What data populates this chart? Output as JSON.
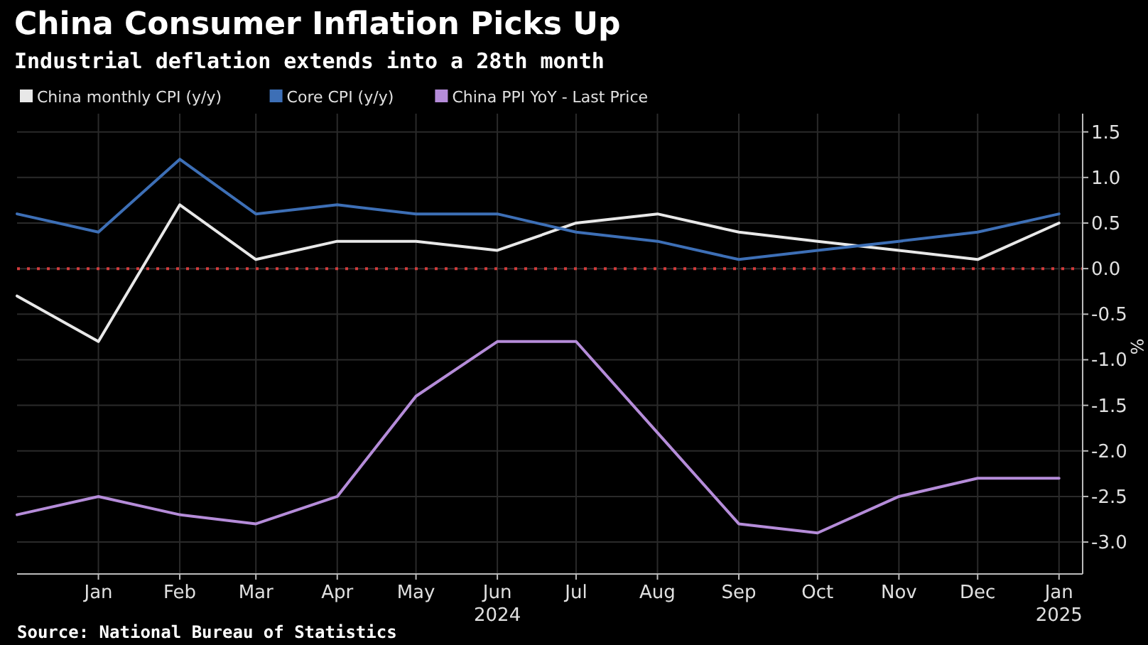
{
  "chart_data": {
    "type": "line",
    "title": "China Consumer Inflation Picks Up",
    "subtitle": "Industrial deflation extends into a 28th month",
    "ylabel": "%",
    "x": [
      "2023-12",
      "2024-01",
      "2024-02",
      "2024-03",
      "2024-04",
      "2024-05",
      "2024-06",
      "2024-07",
      "2024-08",
      "2024-09",
      "2024-10",
      "2024-11",
      "2024-12",
      "2025-01"
    ],
    "series": [
      {
        "name": "China monthly CPI (y/y)",
        "color": "#e8e8e8",
        "values": [
          -0.3,
          -0.8,
          0.7,
          0.1,
          0.3,
          0.3,
          0.2,
          0.5,
          0.6,
          0.4,
          0.3,
          0.2,
          0.1,
          0.5
        ]
      },
      {
        "name": "Core CPI (y/y)",
        "color": "#3d6fb6",
        "values": [
          0.6,
          0.4,
          1.2,
          0.6,
          0.7,
          0.6,
          0.6,
          0.4,
          0.3,
          0.1,
          0.2,
          0.3,
          0.4,
          0.6
        ]
      },
      {
        "name": "China PPI YoY - Last Price",
        "color": "#b58cd9",
        "values": [
          -2.7,
          -2.5,
          -2.7,
          -2.8,
          -2.5,
          -1.4,
          -0.8,
          -0.8,
          -1.8,
          -2.8,
          -2.9,
          -2.5,
          -2.3,
          -2.3
        ]
      }
    ],
    "xlim": [
      "2023-12",
      "2025-01-10"
    ],
    "xticks": [
      {
        "value": "2024-01",
        "label": "Jan"
      },
      {
        "value": "2024-02",
        "label": "Feb"
      },
      {
        "value": "2024-03",
        "label": "Mar"
      },
      {
        "value": "2024-04",
        "label": "Apr"
      },
      {
        "value": "2024-05",
        "label": "May"
      },
      {
        "value": "2024-06",
        "label": "Jun 2024"
      },
      {
        "value": "2024-07",
        "label": "Jul"
      },
      {
        "value": "2024-08",
        "label": "Aug"
      },
      {
        "value": "2024-09",
        "label": "Sep"
      },
      {
        "value": "2024-10",
        "label": "Oct"
      },
      {
        "value": "2024-11",
        "label": "Nov"
      },
      {
        "value": "2024-12",
        "label": "Dec"
      },
      {
        "value": "2025-01",
        "label": "Jan 2025"
      }
    ],
    "ylim": [
      -3.35,
      1.7
    ],
    "yticks": [
      {
        "value": -3,
        "label": "-3.0"
      },
      {
        "value": -2.5,
        "label": "-2.5"
      },
      {
        "value": -2,
        "label": "-2.0"
      },
      {
        "value": -1.5,
        "label": "-1.5"
      },
      {
        "value": -1,
        "label": "-1.0"
      },
      {
        "value": -0.5,
        "label": "-0.5"
      },
      {
        "value": 0,
        "label": "0.0"
      },
      {
        "value": 0.5,
        "label": "0.5"
      },
      {
        "value": 1,
        "label": "1.0"
      },
      {
        "value": 1.5,
        "label": "1.5"
      }
    ],
    "ref_lines": [
      {
        "axis": "y",
        "value": 0,
        "color": "#d23c3c",
        "line_style": "dotted"
      }
    ],
    "grid": true,
    "legend": "top left",
    "line_style": "solid",
    "marker": "none",
    "annotations": [
      "Source: National Bureau of Statistics"
    ]
  }
}
